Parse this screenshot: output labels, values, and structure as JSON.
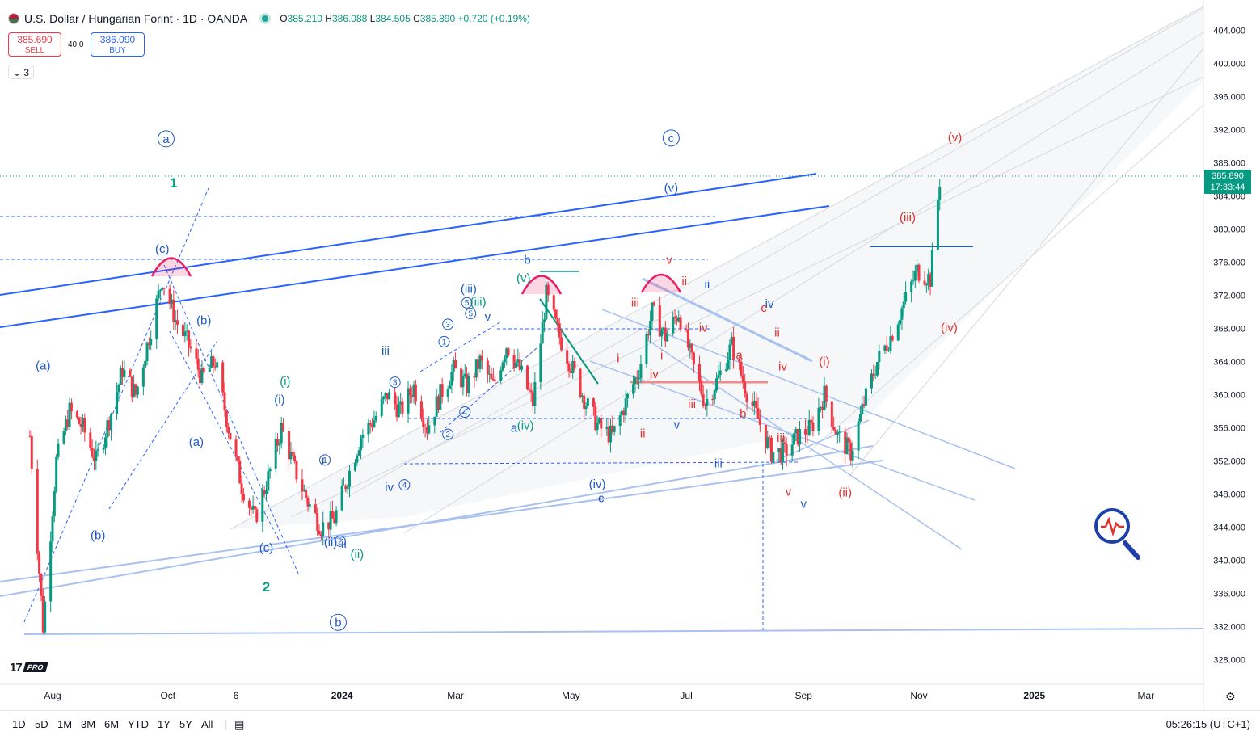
{
  "header": {
    "title": "U.S. Dollar / Hungarian Forint · 1D · OANDA",
    "open_label": "O",
    "open": "385.210",
    "high_label": "H",
    "high": "386.088",
    "low_label": "L",
    "low": "384.505",
    "close_label": "C",
    "close": "385.890",
    "change": "+0.720 (+0.19%)"
  },
  "trade": {
    "sell_price": "385.690",
    "sell_label": "SELL",
    "spread": "40.0",
    "buy_price": "386.090",
    "buy_label": "BUY"
  },
  "indicators_toggle": "3",
  "logo": {
    "text": "17",
    "badge": "PRO"
  },
  "last_price": {
    "value": "385.890",
    "countdown": "17:33:44"
  },
  "bottom_bar": {
    "ranges": [
      "1D",
      "5D",
      "1M",
      "3M",
      "6M",
      "YTD",
      "1Y",
      "5Y",
      "All"
    ],
    "clock": "05:26:15 (UTC+1)"
  },
  "colors": {
    "up": "#089981",
    "down": "#f23645",
    "blue_line": "#2962ff",
    "light_line": "#a9c1ef",
    "wave_blue": "#1e5bc6",
    "wave_green": "#089981",
    "wave_red": "#e0312f",
    "pink": "#e91e63"
  },
  "chart_data": {
    "type": "candlestick",
    "y_ticks": [
      "404.000",
      "400.000",
      "396.000",
      "392.000",
      "388.000",
      "384.000",
      "380.000",
      "376.000",
      "372.000",
      "368.000",
      "364.000",
      "360.000",
      "356.000",
      "352.000",
      "348.000",
      "344.000",
      "340.000",
      "336.000",
      "332.000",
      "328.000"
    ],
    "ylim": [
      325.5,
      406.5
    ],
    "x_ticks": [
      {
        "label": "Aug",
        "date": "2023-08-01"
      },
      {
        "label": "Oct",
        "date": "2023-10-01"
      },
      {
        "label": "6",
        "date": "2023-11-06"
      },
      {
        "label": "2024",
        "date": "2024-01-01",
        "bold": true
      },
      {
        "label": "Mar",
        "date": "2024-03-01"
      },
      {
        "label": "May",
        "date": "2024-05-01"
      },
      {
        "label": "Jul",
        "date": "2024-07-01"
      },
      {
        "label": "Sep",
        "date": "2024-09-01"
      },
      {
        "label": "Nov",
        "date": "2024-11-01"
      },
      {
        "label": "2025",
        "date": "2025-01-01",
        "bold": true
      },
      {
        "label": "Mar",
        "date": "2025-03-01"
      }
    ],
    "price_path": [
      [
        "2023-07-20",
        355
      ],
      [
        "2023-07-27",
        332
      ],
      [
        "2023-08-03",
        352
      ],
      [
        "2023-08-10",
        358
      ],
      [
        "2023-08-17",
        356
      ],
      [
        "2023-08-24",
        352
      ],
      [
        "2023-08-31",
        357
      ],
      [
        "2023-09-07",
        363
      ],
      [
        "2023-09-14",
        360
      ],
      [
        "2023-09-21",
        367
      ],
      [
        "2023-09-28",
        374
      ],
      [
        "2023-10-05",
        369
      ],
      [
        "2023-10-12",
        366
      ],
      [
        "2023-10-19",
        362
      ],
      [
        "2023-10-26",
        364
      ],
      [
        "2023-11-02",
        356
      ],
      [
        "2023-11-09",
        349
      ],
      [
        "2023-11-16",
        345
      ],
      [
        "2023-11-23",
        350
      ],
      [
        "2023-11-30",
        356
      ],
      [
        "2023-12-07",
        351
      ],
      [
        "2023-12-14",
        347
      ],
      [
        "2023-12-21",
        344
      ],
      [
        "2023-12-28",
        345
      ],
      [
        "2024-01-04",
        350
      ],
      [
        "2024-01-11",
        355
      ],
      [
        "2024-01-18",
        357
      ],
      [
        "2024-01-25",
        360
      ],
      [
        "2024-02-01",
        358
      ],
      [
        "2024-02-08",
        361
      ],
      [
        "2024-02-15",
        356
      ],
      [
        "2024-02-22",
        360
      ],
      [
        "2024-02-29",
        363
      ],
      [
        "2024-03-07",
        361
      ],
      [
        "2024-03-14",
        364
      ],
      [
        "2024-03-21",
        361
      ],
      [
        "2024-03-28",
        366
      ],
      [
        "2024-04-04",
        363
      ],
      [
        "2024-04-11",
        359
      ],
      [
        "2024-04-18",
        372
      ],
      [
        "2024-04-25",
        367
      ],
      [
        "2024-05-02",
        363
      ],
      [
        "2024-05-09",
        359
      ],
      [
        "2024-05-16",
        356
      ],
      [
        "2024-05-23",
        355
      ],
      [
        "2024-05-30",
        359
      ],
      [
        "2024-06-06",
        363
      ],
      [
        "2024-06-13",
        370
      ],
      [
        "2024-06-20",
        367
      ],
      [
        "2024-06-27",
        370
      ],
      [
        "2024-07-04",
        364
      ],
      [
        "2024-07-11",
        359
      ],
      [
        "2024-07-18",
        362
      ],
      [
        "2024-07-25",
        366
      ],
      [
        "2024-08-01",
        361
      ],
      [
        "2024-08-08",
        357
      ],
      [
        "2024-08-15",
        353
      ],
      [
        "2024-08-22",
        353
      ],
      [
        "2024-08-29",
        355
      ],
      [
        "2024-09-05",
        356
      ],
      [
        "2024-09-12",
        360
      ],
      [
        "2024-09-19",
        355
      ],
      [
        "2024-09-26",
        353
      ],
      [
        "2024-10-03",
        359
      ],
      [
        "2024-10-10",
        364
      ],
      [
        "2024-10-17",
        367
      ],
      [
        "2024-10-24",
        371
      ],
      [
        "2024-10-31",
        375
      ],
      [
        "2024-11-07",
        374
      ],
      [
        "2024-11-12",
        385.89
      ]
    ],
    "annotations": [
      {
        "text": "a",
        "date": "2023-09-30",
        "price": 390.9,
        "color": "blue",
        "circle": true
      },
      {
        "text": "c",
        "date": "2024-06-23",
        "price": 391.0,
        "color": "blue",
        "circle": true
      },
      {
        "text": "b",
        "date": "2023-12-30",
        "price": 332.5,
        "color": "blue",
        "circle": true
      },
      {
        "text": "1",
        "date": "2023-10-04",
        "price": 385.5,
        "color": "green",
        "bold": true
      },
      {
        "text": "2",
        "date": "2023-11-22",
        "price": 336.7,
        "color": "green",
        "bold": true
      },
      {
        "text": "(c)",
        "date": "2023-09-28",
        "price": 377.6,
        "color": "blue"
      },
      {
        "text": "(b)",
        "date": "2023-10-20",
        "price": 369.0,
        "color": "blue"
      },
      {
        "text": "(a)",
        "date": "2023-07-27",
        "price": 363.5,
        "color": "blue"
      },
      {
        "text": "(b)",
        "date": "2023-08-25",
        "price": 343.0,
        "color": "blue"
      },
      {
        "text": "(a)",
        "date": "2023-10-16",
        "price": 354.3,
        "color": "blue"
      },
      {
        "text": "(c)",
        "date": "2023-11-22",
        "price": 341.5,
        "color": "blue"
      },
      {
        "text": "(i)",
        "date": "2023-11-29",
        "price": 359.4,
        "color": "blue"
      },
      {
        "text": "(i)",
        "date": "2023-12-02",
        "price": 361.6,
        "color": "green"
      },
      {
        "text": "(ii)",
        "date": "2023-12-26",
        "price": 342.2,
        "color": "blue"
      },
      {
        "text": "(ii)",
        "date": "2024-01-09",
        "price": 340.7,
        "color": "green"
      },
      {
        "text": "(iii)",
        "date": "2024-03-08",
        "price": 372.8,
        "color": "blue"
      },
      {
        "text": "(iii)",
        "date": "2024-03-13",
        "price": 371.2,
        "color": "green"
      },
      {
        "text": "(v)",
        "date": "2024-04-06",
        "price": 374.1,
        "color": "green"
      },
      {
        "text": "(iv)",
        "date": "2024-04-07",
        "price": 356.3,
        "color": "green"
      },
      {
        "text": "(iv)",
        "date": "2024-05-15",
        "price": 349.2,
        "color": "blue"
      },
      {
        "text": "(v)",
        "date": "2024-06-23",
        "price": 385.0,
        "color": "blue"
      },
      {
        "text": "c",
        "date": "2024-05-17",
        "price": 347.5,
        "color": "blue"
      },
      {
        "text": "b",
        "date": "2024-04-08",
        "price": 376.3,
        "color": "blue"
      },
      {
        "text": "a",
        "date": "2024-04-01",
        "price": 356.0,
        "color": "blue"
      },
      {
        "text": "iii",
        "date": "2024-01-24",
        "price": 365.3,
        "color": "blue"
      },
      {
        "text": "iv",
        "date": "2024-01-26",
        "price": 348.8,
        "color": "blue"
      },
      {
        "text": "v",
        "date": "2024-03-18",
        "price": 369.4,
        "color": "blue"
      },
      {
        "text": "iii",
        "date": "2024-07-18",
        "price": 351.7,
        "color": "blue"
      },
      {
        "text": "ii",
        "date": "2024-07-12",
        "price": 373.3,
        "color": "blue"
      },
      {
        "text": "iv",
        "date": "2024-08-14",
        "price": 371.0,
        "color": "blue"
      },
      {
        "text": "v",
        "date": "2024-09-01",
        "price": 346.8,
        "color": "blue"
      },
      {
        "text": "v",
        "date": "2024-06-26",
        "price": 356.4,
        "color": "blue"
      },
      {
        "text": "v",
        "date": "2024-06-22",
        "price": 376.3,
        "color": "red"
      },
      {
        "text": "ii",
        "date": "2024-06-30",
        "price": 373.7,
        "color": "red"
      },
      {
        "text": "iii",
        "date": "2024-06-04",
        "price": 371.1,
        "color": "red"
      },
      {
        "text": "iv",
        "date": "2024-07-10",
        "price": 368.1,
        "color": "red"
      },
      {
        "text": "i",
        "date": "2024-05-26",
        "price": 364.4,
        "color": "red"
      },
      {
        "text": "iv",
        "date": "2024-06-14",
        "price": 362.5,
        "color": "red"
      },
      {
        "text": "i",
        "date": "2024-06-18",
        "price": 364.8,
        "color": "red"
      },
      {
        "text": "iii",
        "date": "2024-07-04",
        "price": 358.9,
        "color": "red"
      },
      {
        "text": "ii",
        "date": "2024-06-08",
        "price": 355.3,
        "color": "red"
      },
      {
        "text": "c",
        "date": "2024-08-11",
        "price": 370.5,
        "color": "red"
      },
      {
        "text": "a",
        "date": "2024-07-29",
        "price": 364.8,
        "color": "red"
      },
      {
        "text": "i",
        "date": "2024-08-07",
        "price": 359.4,
        "color": "red"
      },
      {
        "text": "b",
        "date": "2024-07-31",
        "price": 357.7,
        "color": "red"
      },
      {
        "text": "iii",
        "date": "2024-08-20",
        "price": 354.8,
        "color": "red"
      },
      {
        "text": "iv",
        "date": "2024-08-21",
        "price": 363.4,
        "color": "red"
      },
      {
        "text": "ii",
        "date": "2024-08-18",
        "price": 367.5,
        "color": "red"
      },
      {
        "text": "v",
        "date": "2024-08-24",
        "price": 348.3,
        "color": "red"
      },
      {
        "text": "(i)",
        "date": "2024-09-12",
        "price": 364.0,
        "color": "red"
      },
      {
        "text": "(ii)",
        "date": "2024-09-23",
        "price": 348.2,
        "color": "red"
      },
      {
        "text": "(iii)",
        "date": "2024-10-26",
        "price": 381.4,
        "color": "red"
      },
      {
        "text": "(iv)",
        "date": "2024-11-17",
        "price": 368.1,
        "color": "red"
      },
      {
        "text": "(v)",
        "date": "2024-11-20",
        "price": 391.1,
        "color": "red"
      },
      {
        "text": "1",
        "date": "2023-12-23",
        "price": 352.1,
        "color": "blue",
        "circle": true
      },
      {
        "text": "2",
        "date": "2023-12-31",
        "price": 342.3,
        "color": "blue",
        "circle": true
      },
      {
        "text": "3",
        "date": "2024-01-29",
        "price": 361.5,
        "color": "blue",
        "circle": true
      },
      {
        "text": "4",
        "date": "2024-02-03",
        "price": 349.1,
        "color": "blue",
        "circle": true
      },
      {
        "text": "1",
        "date": "2024-02-24",
        "price": 366.4,
        "color": "blue",
        "circle": true
      },
      {
        "text": "2",
        "date": "2024-02-26",
        "price": 355.2,
        "color": "blue",
        "circle": true
      },
      {
        "text": "3",
        "date": "2024-02-26",
        "price": 368.5,
        "color": "blue",
        "circle": true
      },
      {
        "text": "4",
        "date": "2024-03-06",
        "price": 357.9,
        "color": "blue",
        "circle": true
      },
      {
        "text": "5",
        "date": "2024-03-07",
        "price": 371.1,
        "color": "blue",
        "circle": true
      },
      {
        "text": "5",
        "date": "2024-03-09",
        "price": 369.8,
        "color": "blue",
        "circle": true
      },
      {
        "text": "i",
        "date": "2023-12-22",
        "price": 352.1,
        "color": "blue"
      },
      {
        "text": "ii",
        "date": "2024-01-02",
        "price": 342.0,
        "color": "blue"
      }
    ]
  }
}
